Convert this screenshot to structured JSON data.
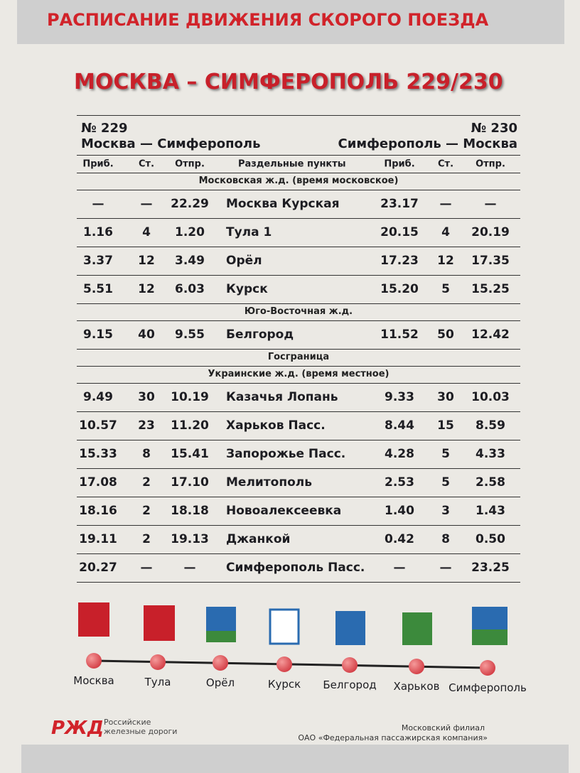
{
  "header": {
    "banner": "РАСПИСАНИЕ ДВИЖЕНИЯ СКОРОГО ПОЕЗДА",
    "title": "МОСКВА – СИМФЕРОПОЛЬ 229/230"
  },
  "trains": {
    "left_number": "№ 229",
    "left_route": "Москва — Симферополь",
    "right_number": "№ 230",
    "right_route": "Симферополь — Москва"
  },
  "table": {
    "columns": [
      "Приб.",
      "Ст.",
      "Отпр.",
      "Раздельные пункты",
      "Приб.",
      "Ст.",
      "Отпр."
    ],
    "items": [
      {
        "section": "Московская ж.д. (время московское)"
      },
      {
        "cells": [
          "—",
          "—",
          "22.29",
          "Москва Курская",
          "23.17",
          "—",
          "—"
        ]
      },
      {
        "cells": [
          "1.16",
          "4",
          "1.20",
          "Тула 1",
          "20.15",
          "4",
          "20.19"
        ]
      },
      {
        "cells": [
          "3.37",
          "12",
          "3.49",
          "Орёл",
          "17.23",
          "12",
          "17.35"
        ]
      },
      {
        "cells": [
          "5.51",
          "12",
          "6.03",
          "Курск",
          "15.20",
          "5",
          "15.25"
        ]
      },
      {
        "section": "Юго-Восточная ж.д."
      },
      {
        "cells": [
          "9.15",
          "40",
          "9.55",
          "Белгород",
          "11.52",
          "50",
          "12.42"
        ]
      },
      {
        "section": "Госграница"
      },
      {
        "section": "Украинские ж.д. (время местное)"
      },
      {
        "cells": [
          "9.49",
          "30",
          "10.19",
          "Казачья Лопань",
          "9.33",
          "30",
          "10.03"
        ]
      },
      {
        "cells": [
          "10.57",
          "23",
          "11.20",
          "Харьков Пасс.",
          "8.44",
          "15",
          "8.59"
        ]
      },
      {
        "cells": [
          "15.33",
          "8",
          "15.41",
          "Запорожье Пасс.",
          "4.28",
          "5",
          "4.33"
        ]
      },
      {
        "cells": [
          "17.08",
          "2",
          "17.10",
          "Мелитополь",
          "2.53",
          "5",
          "2.58"
        ]
      },
      {
        "cells": [
          "18.16",
          "2",
          "18.18",
          "Новоалексеевка",
          "1.40",
          "3",
          "1.43"
        ]
      },
      {
        "cells": [
          "19.11",
          "2",
          "19.13",
          "Джанкой",
          "0.42",
          "8",
          "0.50"
        ]
      },
      {
        "cells": [
          "20.27",
          "—",
          "—",
          "Симферополь Пасс.",
          "—",
          "—",
          "23.25"
        ]
      }
    ]
  },
  "route": [
    "Москва",
    "Тула",
    "Орёл",
    "Курск",
    "Белгород",
    "Харьков",
    "Симферополь"
  ],
  "footer": {
    "logo_line1": "Российские",
    "logo_line2": "железные дороги",
    "branch": "Московский филиал",
    "company": "ОАО «Федеральная пассажирская компания»"
  }
}
